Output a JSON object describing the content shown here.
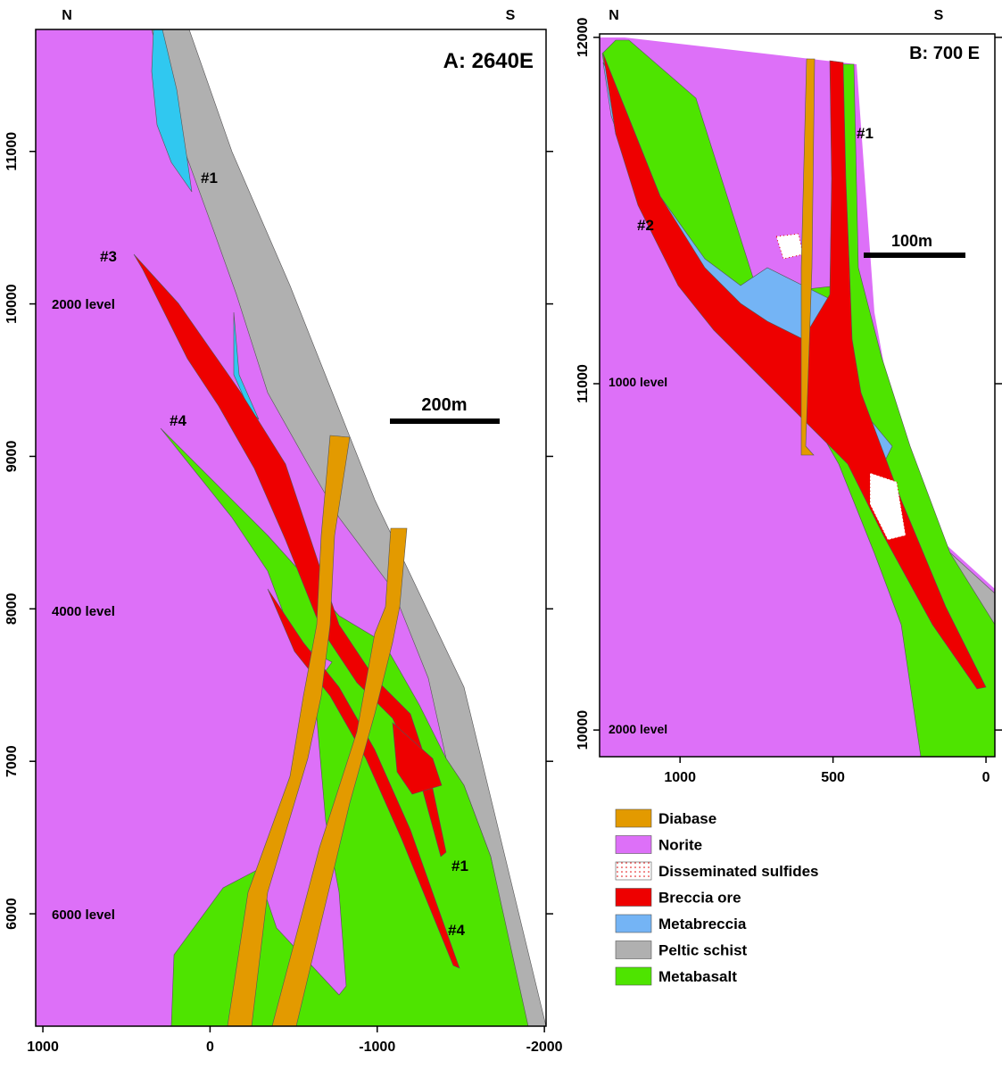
{
  "panels": [
    {
      "title": "A: 2640E",
      "left_label": "N",
      "right_label": "S",
      "xlim": [
        1043,
        -2010
      ],
      "xticks": [
        1000,
        0,
        -1000,
        -2000
      ],
      "ylim": [
        5263,
        11800
      ],
      "yticks": [
        11000,
        10000,
        9000,
        8000,
        7000,
        6000
      ],
      "scale_bar": "200m",
      "annotations": [
        "#1",
        "#3",
        "2000 level",
        "#4",
        "4000 level",
        "6000 level",
        "#1",
        "#4"
      ]
    },
    {
      "title": "B: 700 E",
      "left_label": "N",
      "right_label": "S",
      "xlim": [
        1263,
        -29
      ],
      "xticks": [
        1000,
        500,
        0
      ],
      "ylim": [
        9923,
        12010
      ],
      "yticks": [
        12000,
        11000,
        10000
      ],
      "scale_bar": "100m",
      "annotations": [
        "#1",
        "#2",
        "1000 level",
        "2000 level"
      ]
    }
  ],
  "legend": [
    {
      "label": "Diabase",
      "color": "#e39a00"
    },
    {
      "label": "Norite",
      "color": "#dd70f8"
    },
    {
      "label": "Disseminated sulfides",
      "color": "#e00000",
      "fill": "dots"
    },
    {
      "label": "Breccia ore",
      "color": "#ee0000"
    },
    {
      "label": "Metabreccia",
      "color": "#74b4f5"
    },
    {
      "label": "Peltic schist",
      "color": "#b0b0b0"
    },
    {
      "label": "Metabasalt",
      "color": "#4ee400"
    }
  ]
}
